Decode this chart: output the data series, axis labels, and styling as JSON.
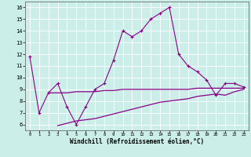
{
  "xlabel": "Windchill (Refroidissement éolien,°C)",
  "bg_color": "#cceee8",
  "line_color": "#880088",
  "xlim": [
    -0.5,
    23.5
  ],
  "ylim": [
    5.5,
    16.5
  ],
  "xticks": [
    0,
    1,
    2,
    3,
    4,
    5,
    6,
    7,
    8,
    9,
    10,
    11,
    12,
    13,
    14,
    15,
    16,
    17,
    18,
    19,
    20,
    21,
    22,
    23
  ],
  "yticks": [
    6,
    7,
    8,
    9,
    10,
    11,
    12,
    13,
    14,
    15,
    16
  ],
  "line1_x": [
    0,
    1,
    2,
    3,
    4,
    5,
    6,
    7,
    8,
    9,
    10,
    11,
    12,
    13,
    14,
    15,
    16,
    17,
    18,
    19,
    20,
    21,
    22,
    23
  ],
  "line1_y": [
    11.8,
    7.0,
    8.7,
    9.5,
    7.5,
    6.0,
    7.5,
    9.0,
    9.5,
    11.5,
    14.0,
    13.5,
    14.0,
    15.0,
    15.5,
    16.0,
    12.0,
    11.0,
    10.5,
    9.8,
    8.5,
    9.5,
    9.5,
    9.2
  ],
  "line2_x": [
    2,
    3,
    4,
    5,
    6,
    7,
    8,
    9,
    10,
    11,
    12,
    13,
    14,
    15,
    16,
    17,
    18,
    19,
    20,
    21,
    22,
    23
  ],
  "line2_y": [
    8.7,
    8.7,
    8.7,
    8.8,
    8.8,
    8.8,
    8.9,
    8.9,
    9.0,
    9.0,
    9.0,
    9.0,
    9.0,
    9.0,
    9.0,
    9.0,
    9.1,
    9.1,
    9.1,
    9.1,
    9.1,
    9.1
  ],
  "line3_x": [
    3,
    4,
    5,
    6,
    7,
    8,
    9,
    10,
    11,
    12,
    13,
    14,
    15,
    16,
    17,
    18,
    19,
    20,
    21,
    22,
    23
  ],
  "line3_y": [
    5.9,
    6.1,
    6.3,
    6.4,
    6.5,
    6.7,
    6.9,
    7.1,
    7.3,
    7.5,
    7.7,
    7.9,
    8.0,
    8.1,
    8.2,
    8.4,
    8.5,
    8.6,
    8.5,
    8.8,
    9.0
  ]
}
